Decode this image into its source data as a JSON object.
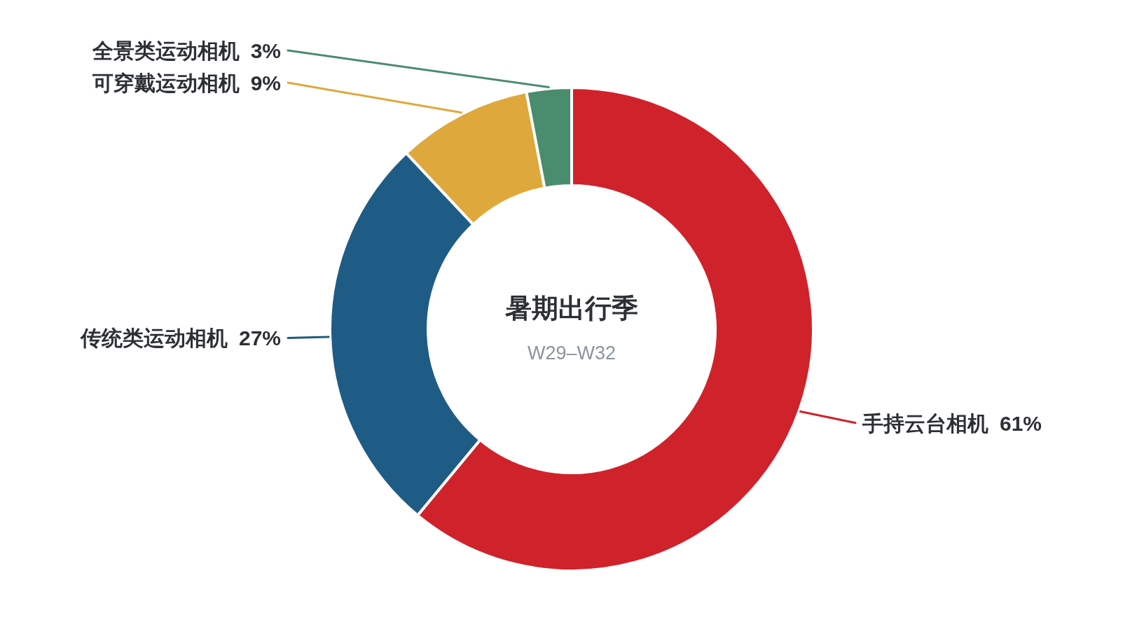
{
  "chart_data": {
    "type": "donut",
    "title": "暑期出行季",
    "subtitle": "W29–W32",
    "categories": [
      "手持云台相机",
      "传统类运动相机",
      "可穿戴运动相机",
      "全景类运动相机"
    ],
    "values": [
      61,
      27,
      9,
      3
    ],
    "colors": [
      "#d0222a",
      "#1f5c85",
      "#dfa83c",
      "#4a8c6e"
    ],
    "value_labels": [
      "61%",
      "27%",
      "9%",
      "3%"
    ]
  }
}
